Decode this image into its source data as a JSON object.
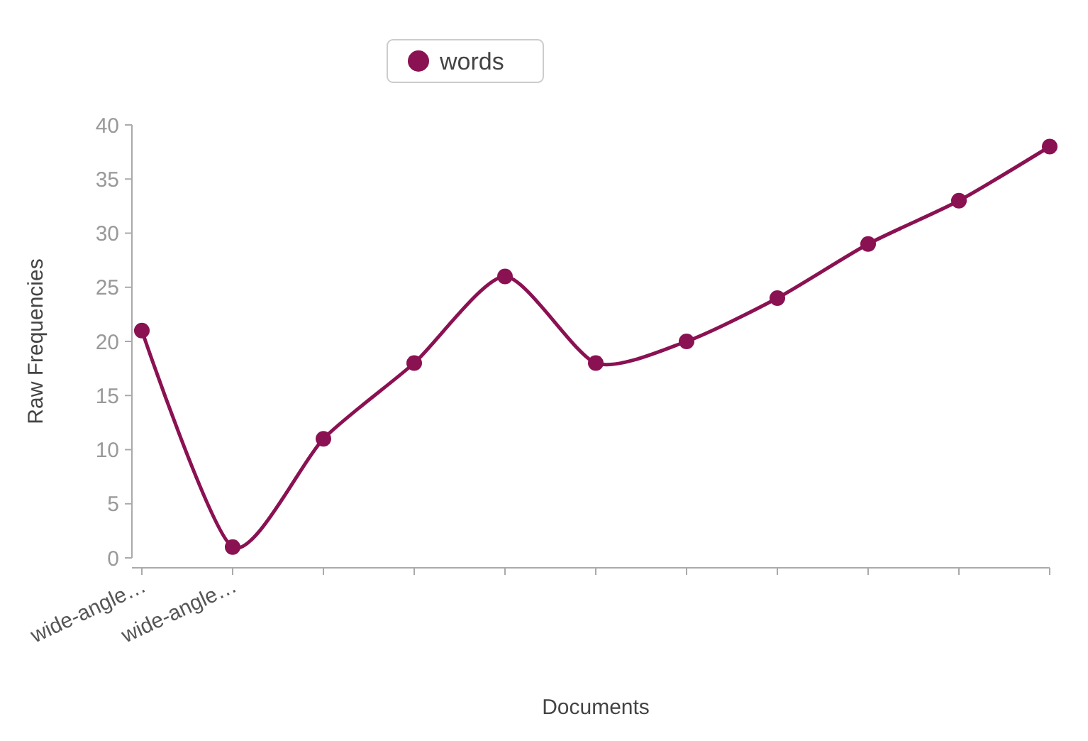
{
  "chart_data": {
    "type": "line",
    "xlabel": "Documents",
    "ylabel": "Raw Frequencies",
    "categories": [
      "wide-angle…",
      "wide-angle…",
      null,
      null,
      null,
      null,
      null,
      null,
      null,
      null,
      null
    ],
    "series": [
      {
        "name": "words",
        "color": "#8a1152",
        "values": [
          21,
          1,
          11,
          18,
          26,
          18,
          20,
          24,
          29,
          33,
          38
        ]
      }
    ],
    "ylim": [
      0,
      40
    ],
    "yticks": [
      0,
      5,
      10,
      15,
      20,
      25,
      30,
      35,
      40
    ],
    "grid": false,
    "legend": "top",
    "marker": "circle",
    "line_style": "solid"
  }
}
